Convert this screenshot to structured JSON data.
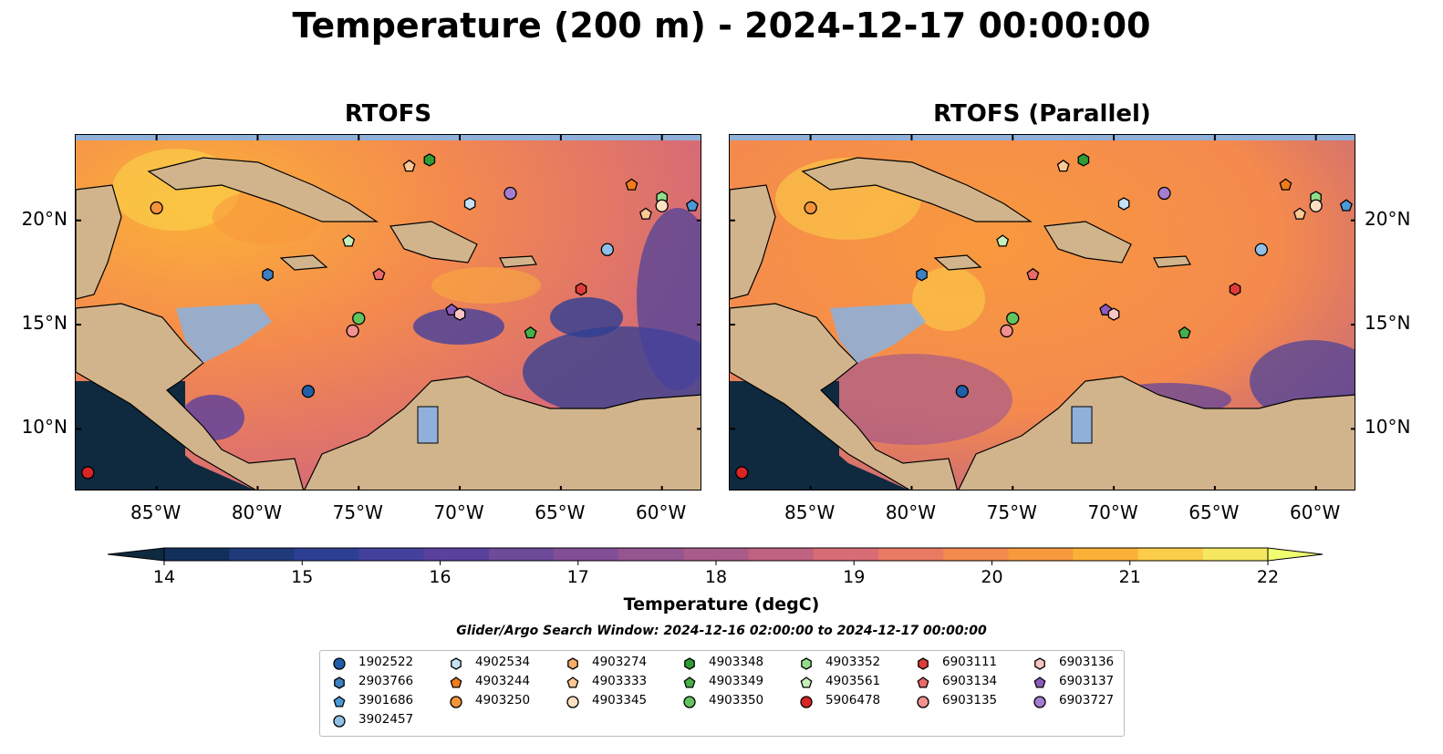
{
  "title": "Temperature (200 m) - 2024-12-17 00:00:00",
  "panels": [
    {
      "title": "RTOFS"
    },
    {
      "title": "RTOFS (Parallel)"
    }
  ],
  "axes": {
    "lon_ticks": [
      "85°W",
      "80°W",
      "75°W",
      "70°W",
      "65°W",
      "60°W"
    ],
    "lat_ticks": [
      "20°N",
      "15°N",
      "10°N"
    ],
    "lon_range": [
      -89,
      -58
    ],
    "lat_range": [
      7,
      24.1
    ]
  },
  "colorbar": {
    "label": "Temperature (degC)",
    "min": 14,
    "max": 22,
    "step": 0.5,
    "ticks": [
      "14",
      "15",
      "16",
      "17",
      "18",
      "19",
      "20",
      "21",
      "22"
    ],
    "colors": [
      "#0f2a3f",
      "#122f5c",
      "#1f3a7a",
      "#2d3f93",
      "#44409d",
      "#5a419e",
      "#6e4a9a",
      "#824f96",
      "#955590",
      "#a95b8a",
      "#c06282",
      "#d86c74",
      "#ea7a62",
      "#f48a4e",
      "#f8993e",
      "#fbb138",
      "#fbcd48",
      "#f5e85e",
      "#f0ff70"
    ]
  },
  "window_label": "Glider/Argo Search Window: 2024-12-16 02:00:00 to 2024-12-17 00:00:00",
  "legend": [
    {
      "id": "1902522",
      "marker": "circle",
      "color": "#1f5fa8"
    },
    {
      "id": "2903766",
      "marker": "hexagon",
      "color": "#3f7fc4"
    },
    {
      "id": "3901686",
      "marker": "pentagon",
      "color": "#4a9ad6"
    },
    {
      "id": "3902457",
      "marker": "circle",
      "color": "#8fc1e8"
    },
    {
      "id": "4902534",
      "marker": "hexagon",
      "color": "#c5e2f5"
    },
    {
      "id": "4903244",
      "marker": "pentagon",
      "color": "#f07c1a"
    },
    {
      "id": "4903250",
      "marker": "circle",
      "color": "#f5923a"
    },
    {
      "id": "4903274",
      "marker": "hexagon",
      "color": "#f9ad6a"
    },
    {
      "id": "4903333",
      "marker": "pentagon",
      "color": "#fcc894"
    },
    {
      "id": "4903345",
      "marker": "circle",
      "color": "#fde0c2"
    },
    {
      "id": "4903348",
      "marker": "hexagon",
      "color": "#2e9e33"
    },
    {
      "id": "4903349",
      "marker": "pentagon",
      "color": "#45b048"
    },
    {
      "id": "4903350",
      "marker": "circle",
      "color": "#62c45e"
    },
    {
      "id": "4903352",
      "marker": "hexagon",
      "color": "#92dc8a"
    },
    {
      "id": "4903561",
      "marker": "pentagon",
      "color": "#c5f0bb"
    },
    {
      "id": "5906478",
      "marker": "circle",
      "color": "#d92525"
    },
    {
      "id": "6903111",
      "marker": "hexagon",
      "color": "#e03b3b"
    },
    {
      "id": "6903134",
      "marker": "pentagon",
      "color": "#ec6a6a"
    },
    {
      "id": "6903135",
      "marker": "circle",
      "color": "#f49090"
    },
    {
      "id": "6903136",
      "marker": "hexagon",
      "color": "#f9c4c4"
    },
    {
      "id": "6903137",
      "marker": "pentagon",
      "color": "#8d5bbd"
    },
    {
      "id": "6903727",
      "marker": "circle",
      "color": "#a57dd0"
    }
  ],
  "observations": [
    {
      "id": "4903333",
      "lon": -72.5,
      "lat": 22.6
    },
    {
      "id": "4903348",
      "lon": -71.5,
      "lat": 22.9
    },
    {
      "id": "4903244",
      "lon": -61.5,
      "lat": 21.7
    },
    {
      "id": "4903352",
      "lon": -60.0,
      "lat": 21.1
    },
    {
      "id": "4903345",
      "lon": -60.0,
      "lat": 20.7
    },
    {
      "id": "3901686",
      "lon": -58.5,
      "lat": 20.7
    },
    {
      "id": "4903333",
      "lon": -60.8,
      "lat": 20.3
    },
    {
      "id": "4903250",
      "lon": -85.0,
      "lat": 20.6
    },
    {
      "id": "4902534",
      "lon": -69.5,
      "lat": 20.8
    },
    {
      "id": "6903727",
      "lon": -67.5,
      "lat": 21.3
    },
    {
      "id": "4903561",
      "lon": -75.5,
      "lat": 19.0
    },
    {
      "id": "3902457",
      "lon": -62.7,
      "lat": 18.6
    },
    {
      "id": "2903766",
      "lon": -79.5,
      "lat": 17.4
    },
    {
      "id": "6903134",
      "lon": -74.0,
      "lat": 17.4
    },
    {
      "id": "6903111",
      "lon": -64.0,
      "lat": 16.7
    },
    {
      "id": "4903350",
      "lon": -75.0,
      "lat": 15.3
    },
    {
      "id": "6903135",
      "lon": -75.3,
      "lat": 14.7
    },
    {
      "id": "6903137",
      "lon": -70.4,
      "lat": 15.7
    },
    {
      "id": "6903136",
      "lon": -70.0,
      "lat": 15.5
    },
    {
      "id": "4903349",
      "lon": -66.5,
      "lat": 14.6
    },
    {
      "id": "1902522",
      "lon": -77.5,
      "lat": 11.8
    },
    {
      "id": "5906478",
      "lon": -88.4,
      "lat": 7.9
    }
  ]
}
